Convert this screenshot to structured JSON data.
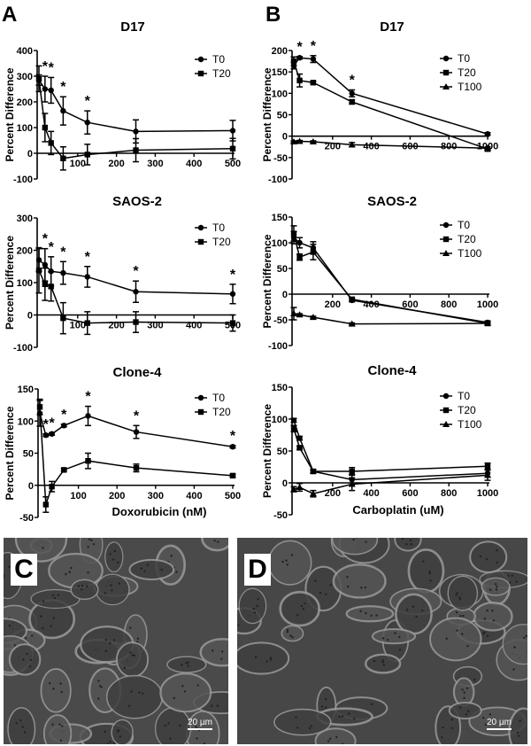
{
  "panels": {
    "a": "A",
    "b": "B",
    "c": "C",
    "d": "D"
  },
  "micrographs": [
    {
      "panel": "C",
      "scale_bar": "20 µm"
    },
    {
      "panel": "D",
      "scale_bar": "20 µm"
    }
  ],
  "chart_data": [
    {
      "type": "line",
      "panel": "A",
      "title": "D17",
      "ylabel": "Percent Difference",
      "xlabel": "",
      "xlim": [
        0,
        500
      ],
      "ylim": [
        -100,
        400
      ],
      "xticks": [
        100,
        200,
        300,
        400,
        500
      ],
      "yticks": [
        -100,
        0,
        100,
        200,
        300,
        400
      ],
      "significance_x": [
        15.6,
        31.25,
        62.5,
        125
      ],
      "significance_mark": "*",
      "series": [
        {
          "name": "T0",
          "marker": "circle",
          "x": [
            0,
            15.6,
            31.25,
            62.5,
            125,
            250,
            500
          ],
          "y": [
            285,
            250,
            245,
            165,
            120,
            85,
            88
          ],
          "err": [
            20,
            50,
            50,
            55,
            45,
            45,
            40
          ]
        },
        {
          "name": "T20",
          "marker": "square",
          "x": [
            0,
            15.6,
            31.25,
            62.5,
            125,
            250,
            500
          ],
          "y": [
            290,
            100,
            40,
            -20,
            -5,
            12,
            18
          ],
          "err": [
            50,
            55,
            45,
            45,
            40,
            45,
            40
          ]
        }
      ]
    },
    {
      "type": "line",
      "panel": "B",
      "title": "D17",
      "ylabel": "Percent Difference",
      "xlabel": "",
      "xlim": [
        0,
        1000
      ],
      "ylim": [
        -100,
        200
      ],
      "xticks": [
        200,
        400,
        600,
        800,
        1000
      ],
      "yticks": [
        -100,
        -50,
        0,
        50,
        100,
        150,
        200
      ],
      "significance_x": [
        30,
        100,
        300
      ],
      "significance_mark": "*",
      "series": [
        {
          "name": "T0",
          "marker": "circle",
          "x": [
            0,
            30,
            100,
            300,
            1000
          ],
          "y": [
            165,
            183,
            180,
            100,
            5
          ],
          "err": [
            8,
            3,
            8,
            8,
            3
          ]
        },
        {
          "name": "T20",
          "marker": "square",
          "x": [
            0,
            30,
            100,
            300,
            1000
          ],
          "y": [
            175,
            130,
            125,
            80,
            -30
          ],
          "err": [
            10,
            15,
            3,
            5,
            5
          ]
        },
        {
          "name": "T100",
          "marker": "triangle",
          "x": [
            0,
            30,
            100,
            300,
            1000
          ],
          "y": [
            -13,
            -12,
            -13,
            -20,
            -28
          ],
          "err": [
            2,
            2,
            2,
            5,
            3
          ]
        }
      ]
    },
    {
      "type": "line",
      "panel": "A",
      "title": "SAOS-2",
      "ylabel": "Percent Difference",
      "xlabel": "",
      "xlim": [
        0,
        500
      ],
      "ylim": [
        -100,
        300
      ],
      "xticks": [
        100,
        200,
        300,
        400,
        500
      ],
      "yticks": [
        -100,
        0,
        100,
        200,
        300
      ],
      "significance_x": [
        15.6,
        31.25,
        62.5,
        125,
        250,
        500
      ],
      "significance_mark": "*",
      "series": [
        {
          "name": "T0",
          "marker": "circle",
          "x": [
            0,
            15.6,
            31.25,
            62.5,
            125,
            250,
            500
          ],
          "y": [
            170,
            155,
            135,
            130,
            118,
            72,
            65
          ],
          "err": [
            35,
            50,
            45,
            35,
            32,
            33,
            30
          ]
        },
        {
          "name": "T20",
          "marker": "square",
          "x": [
            0,
            15.6,
            31.25,
            62.5,
            125,
            250,
            500
          ],
          "y": [
            138,
            95,
            88,
            -10,
            -25,
            -22,
            -25
          ],
          "err": [
            70,
            50,
            45,
            48,
            35,
            32,
            25
          ]
        }
      ]
    },
    {
      "type": "line",
      "panel": "B",
      "title": "SAOS-2",
      "ylabel": "Percent Difference",
      "xlabel": "",
      "xlim": [
        0,
        1000
      ],
      "ylim": [
        -100,
        150
      ],
      "xticks": [
        200,
        400,
        600,
        800,
        1000
      ],
      "yticks": [
        -100,
        -50,
        0,
        50,
        100,
        150
      ],
      "significance_x": [],
      "significance_mark": "*",
      "series": [
        {
          "name": "T0",
          "marker": "circle",
          "x": [
            0,
            30,
            100,
            300,
            1000
          ],
          "y": [
            110,
            100,
            90,
            -12,
            -55
          ],
          "err": [
            12,
            10,
            12,
            3,
            3
          ]
        },
        {
          "name": "T20",
          "marker": "square",
          "x": [
            0,
            30,
            100,
            300,
            1000
          ],
          "y": [
            118,
            72,
            82,
            -10,
            -57
          ],
          "err": [
            15,
            6,
            15,
            3,
            3
          ]
        },
        {
          "name": "T100",
          "marker": "triangle",
          "x": [
            0,
            30,
            100,
            300,
            1000
          ],
          "y": [
            -38,
            -40,
            -45,
            -58,
            -57
          ],
          "err": [
            12,
            2,
            2,
            2,
            2
          ]
        }
      ]
    },
    {
      "type": "line",
      "panel": "A",
      "title": "Clone-4",
      "ylabel": "Percent Difference",
      "xlabel": "Doxorubicin (nM)",
      "xlim": [
        0,
        500
      ],
      "ylim": [
        -50,
        150
      ],
      "xticks": [
        100,
        200,
        300,
        400,
        500
      ],
      "yticks": [
        -50,
        0,
        50,
        100,
        150
      ],
      "significance_x": [
        15.6,
        31.25,
        62.5,
        125,
        250,
        500
      ],
      "significance_mark": "*",
      "series": [
        {
          "name": "T0",
          "marker": "circle",
          "x": [
            0,
            15.6,
            31.25,
            62.5,
            125,
            250,
            500
          ],
          "y": [
            112,
            78,
            80,
            93,
            108,
            83,
            60
          ],
          "err": [
            20,
            2,
            2,
            2,
            15,
            10,
            2
          ]
        },
        {
          "name": "T20",
          "marker": "square",
          "x": [
            0,
            15.6,
            31.25,
            62.5,
            125,
            250,
            500
          ],
          "y": [
            122,
            -30,
            -2,
            24,
            38,
            27,
            15
          ],
          "err": [
            12,
            12,
            8,
            2,
            12,
            6,
            2
          ]
        }
      ]
    },
    {
      "type": "line",
      "panel": "B",
      "title": "Clone-4",
      "ylabel": "Percent Difference",
      "xlabel": "Carboplatin (uM)",
      "xlim": [
        0,
        1000
      ],
      "ylim": [
        -50,
        150
      ],
      "xticks": [
        200,
        400,
        600,
        800,
        1000
      ],
      "yticks": [
        -50,
        0,
        50,
        100,
        150
      ],
      "significance_x": [],
      "significance_mark": "*",
      "series": [
        {
          "name": "T0",
          "marker": "circle",
          "x": [
            0,
            30,
            100,
            300,
            1000
          ],
          "y": [
            98,
            70,
            18,
            5,
            15
          ],
          "err": [
            3,
            3,
            3,
            8,
            6
          ]
        },
        {
          "name": "T20",
          "marker": "square",
          "x": [
            0,
            30,
            100,
            300,
            1000
          ],
          "y": [
            85,
            55,
            18,
            18,
            26
          ],
          "err": [
            5,
            3,
            3,
            6,
            5
          ]
        },
        {
          "name": "T100",
          "marker": "triangle",
          "x": [
            0,
            30,
            100,
            300,
            1000
          ],
          "y": [
            -10,
            -7,
            -17,
            -2,
            12
          ],
          "err": [
            4,
            6,
            5,
            10,
            8
          ]
        }
      ]
    }
  ]
}
